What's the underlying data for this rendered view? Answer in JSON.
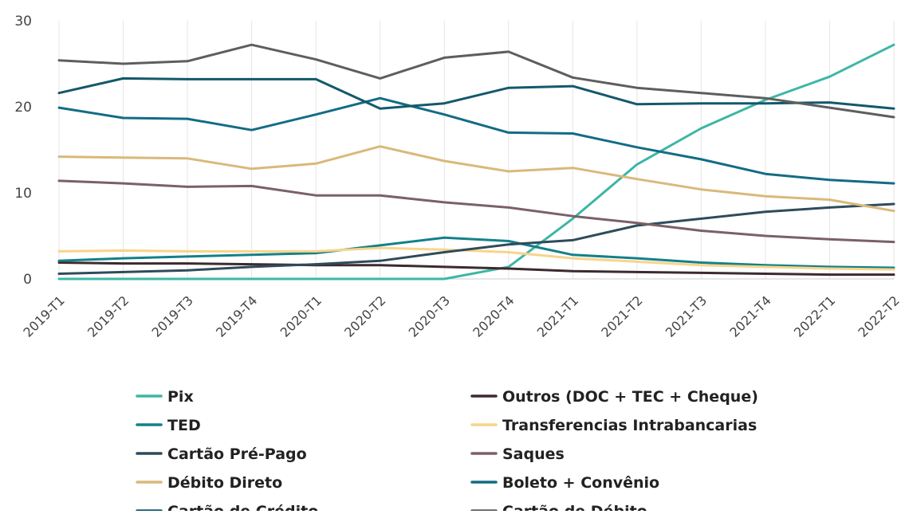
{
  "chart_data": {
    "type": "line",
    "title": "",
    "xlabel": "",
    "ylabel": "",
    "ylim": [
      0,
      30
    ],
    "yticks": [
      0,
      10,
      20,
      30
    ],
    "grid": "vertical",
    "legend_position": "bottom",
    "categories": [
      "2019-T1",
      "2019-T2",
      "2019-T3",
      "2019-T4",
      "2020-T1",
      "2020-T2",
      "2020-T3",
      "2020-T4",
      "2021-T1",
      "2021-T2",
      "2021-T3",
      "2021-T4",
      "2022-T1",
      "2022-T2"
    ],
    "series": [
      {
        "name": "Pix",
        "color": "#3db6a6",
        "values": [
          0,
          0,
          0,
          0,
          0,
          0,
          0,
          1.4,
          7.0,
          13.3,
          17.5,
          20.8,
          23.5,
          27.2
        ]
      },
      {
        "name": "Outros (DOC + TEC + Cheque)",
        "color": "#3d2a2e",
        "values": [
          1.9,
          1.8,
          1.8,
          1.7,
          1.6,
          1.6,
          1.4,
          1.2,
          0.9,
          0.8,
          0.7,
          0.6,
          0.5,
          0.5
        ]
      },
      {
        "name": "TED",
        "color": "#13808a",
        "values": [
          2.1,
          2.4,
          2.6,
          2.8,
          3.0,
          3.9,
          4.8,
          4.4,
          2.8,
          2.4,
          1.9,
          1.6,
          1.4,
          1.3
        ]
      },
      {
        "name": "Transferencias Intrabancarias",
        "color": "#f8d48a",
        "values": [
          3.2,
          3.3,
          3.2,
          3.2,
          3.2,
          3.6,
          3.4,
          3.1,
          2.4,
          2.0,
          1.6,
          1.4,
          1.2,
          1.1
        ]
      },
      {
        "name": "Cartão Pré-Pago",
        "color": "#2f4b5a",
        "values": [
          0.6,
          0.8,
          1.0,
          1.4,
          1.7,
          2.1,
          3.1,
          4.0,
          4.5,
          6.2,
          7.0,
          7.8,
          8.3,
          8.7
        ]
      },
      {
        "name": "Saques",
        "color": "#7b6068",
        "values": [
          11.4,
          11.1,
          10.7,
          10.8,
          9.7,
          9.7,
          8.9,
          8.3,
          7.3,
          6.5,
          5.6,
          5.0,
          4.6,
          4.3
        ]
      },
      {
        "name": "Débito Direto",
        "color": "#d9b97a",
        "values": [
          14.2,
          14.1,
          14.0,
          12.8,
          13.4,
          15.4,
          13.7,
          12.5,
          12.9,
          11.6,
          10.4,
          9.6,
          9.2,
          7.9
        ]
      },
      {
        "name": "Boleto + Convênio",
        "color": "#136c85",
        "values": [
          19.9,
          18.7,
          18.6,
          17.3,
          19.1,
          21.0,
          19.1,
          17.0,
          16.9,
          15.3,
          13.9,
          12.2,
          11.5,
          11.1
        ]
      },
      {
        "name": "Cartão de Crédito",
        "color": "#14586b",
        "values": [
          21.6,
          23.3,
          23.2,
          23.2,
          23.2,
          19.8,
          20.4,
          22.2,
          22.4,
          20.3,
          20.4,
          20.4,
          20.5,
          19.8
        ]
      },
      {
        "name": "Cartão de Débito",
        "color": "#5e5e5e",
        "values": [
          25.4,
          25.0,
          25.3,
          27.2,
          25.5,
          23.3,
          25.7,
          26.4,
          23.4,
          22.2,
          21.6,
          21.0,
          19.9,
          18.8
        ]
      }
    ]
  }
}
